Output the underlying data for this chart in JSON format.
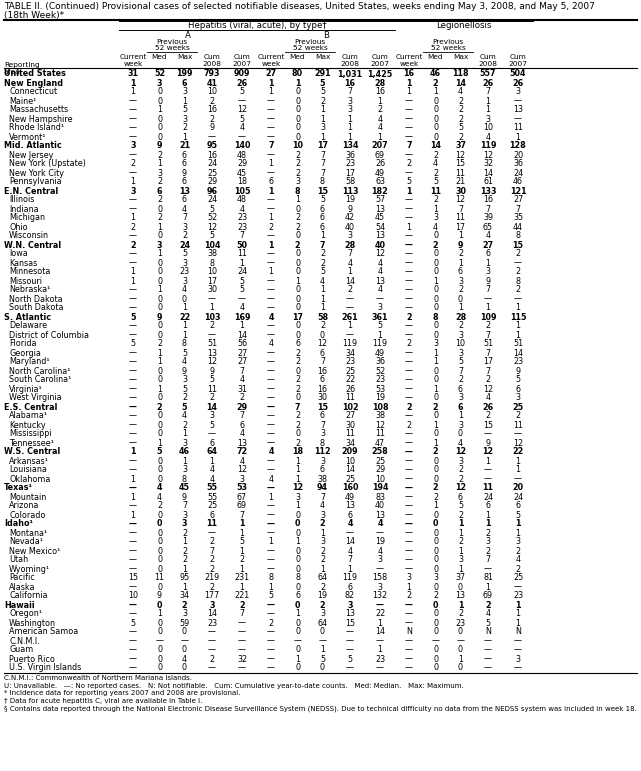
{
  "title1": "TABLE II. (Continued) Provisional cases of selected notifiable diseases, United States, weeks ending May 3, 2008, and May 5, 2007",
  "title2": "(18th Week)*",
  "hep_label": "Hepatitis (viral, acute), by type†",
  "bold_rows": [
    0,
    1,
    8,
    13,
    19,
    27,
    37,
    42,
    46,
    50,
    59
  ],
  "rows": [
    [
      "United States",
      "31",
      "52",
      "199",
      "793",
      "909",
      "27",
      "80",
      "291",
      "1,031",
      "1,425",
      "16",
      "46",
      "118",
      "557",
      "504"
    ],
    [
      "New England",
      "1",
      "3",
      "6",
      "41",
      "26",
      "1",
      "1",
      "5",
      "16",
      "28",
      "1",
      "2",
      "14",
      "26",
      "26"
    ],
    [
      "Connecticut",
      "1",
      "0",
      "3",
      "10",
      "5",
      "1",
      "0",
      "5",
      "7",
      "16",
      "1",
      "1",
      "4",
      "7",
      "3"
    ],
    [
      "Maine¹",
      "—",
      "0",
      "1",
      "2",
      "—",
      "—",
      "0",
      "2",
      "3",
      "1",
      "—",
      "0",
      "2",
      "1",
      "—"
    ],
    [
      "Massachusetts",
      "—",
      "1",
      "5",
      "16",
      "12",
      "—",
      "0",
      "1",
      "3",
      "2",
      "—",
      "0",
      "2",
      "1",
      "13"
    ],
    [
      "New Hampshire",
      "—",
      "0",
      "3",
      "2",
      "5",
      "—",
      "0",
      "1",
      "1",
      "4",
      "—",
      "0",
      "2",
      "3",
      "—"
    ],
    [
      "Rhode Island¹",
      "—",
      "0",
      "2",
      "9",
      "4",
      "—",
      "0",
      "3",
      "1",
      "4",
      "—",
      "0",
      "5",
      "10",
      "11"
    ],
    [
      "Vermont¹",
      "—",
      "0",
      "1",
      "—",
      "—",
      "—",
      "0",
      "1",
      "1",
      "1",
      "—",
      "0",
      "2",
      "4",
      "1"
    ],
    [
      "Mid. Atlantic",
      "3",
      "9",
      "21",
      "95",
      "140",
      "7",
      "10",
      "17",
      "134",
      "207",
      "7",
      "14",
      "37",
      "119",
      "128"
    ],
    [
      "New Jersey",
      "—",
      "2",
      "6",
      "16",
      "48",
      "—",
      "2",
      "7",
      "36",
      "69",
      "—",
      "2",
      "12",
      "12",
      "20"
    ],
    [
      "New York (Upstate)",
      "2",
      "1",
      "6",
      "24",
      "29",
      "1",
      "2",
      "7",
      "23",
      "26",
      "2",
      "4",
      "15",
      "32",
      "36"
    ],
    [
      "New York City",
      "—",
      "3",
      "9",
      "25",
      "45",
      "—",
      "2",
      "7",
      "17",
      "49",
      "—",
      "2",
      "11",
      "14",
      "24"
    ],
    [
      "Pennsylvania",
      "1",
      "2",
      "6",
      "29",
      "18",
      "6",
      "3",
      "8",
      "58",
      "63",
      "5",
      "5",
      "21",
      "61",
      "46"
    ],
    [
      "E.N. Central",
      "3",
      "6",
      "13",
      "96",
      "105",
      "1",
      "8",
      "15",
      "113",
      "182",
      "1",
      "11",
      "30",
      "133",
      "121"
    ],
    [
      "Illinois",
      "—",
      "2",
      "6",
      "24",
      "48",
      "—",
      "1",
      "5",
      "19",
      "57",
      "—",
      "2",
      "12",
      "16",
      "27"
    ],
    [
      "Indiana",
      "—",
      "0",
      "4",
      "5",
      "4",
      "—",
      "0",
      "6",
      "9",
      "13",
      "—",
      "1",
      "7",
      "7",
      "7"
    ],
    [
      "Michigan",
      "1",
      "2",
      "7",
      "52",
      "23",
      "1",
      "2",
      "6",
      "42",
      "45",
      "—",
      "3",
      "11",
      "39",
      "35"
    ],
    [
      "Ohio",
      "2",
      "1",
      "3",
      "12",
      "23",
      "2",
      "2",
      "6",
      "40",
      "54",
      "1",
      "4",
      "17",
      "65",
      "44"
    ],
    [
      "Wisconsin",
      "—",
      "0",
      "2",
      "5",
      "7",
      "—",
      "0",
      "1",
      "3",
      "13",
      "—",
      "0",
      "1",
      "4",
      "8"
    ],
    [
      "W.N. Central",
      "2",
      "3",
      "24",
      "104",
      "50",
      "1",
      "2",
      "7",
      "28",
      "40",
      "—",
      "2",
      "9",
      "27",
      "15"
    ],
    [
      "Iowa",
      "—",
      "1",
      "5",
      "38",
      "11",
      "—",
      "0",
      "2",
      "7",
      "12",
      "—",
      "0",
      "2",
      "6",
      "2"
    ],
    [
      "Kansas",
      "—",
      "0",
      "3",
      "8",
      "1",
      "—",
      "0",
      "2",
      "4",
      "4",
      "—",
      "0",
      "1",
      "1",
      "—"
    ],
    [
      "Minnesota",
      "1",
      "0",
      "23",
      "10",
      "24",
      "1",
      "0",
      "5",
      "1",
      "4",
      "—",
      "0",
      "6",
      "3",
      "2"
    ],
    [
      "Missouri",
      "1",
      "0",
      "3",
      "17",
      "5",
      "—",
      "1",
      "4",
      "14",
      "13",
      "—",
      "1",
      "3",
      "9",
      "8"
    ],
    [
      "Nebraska¹",
      "—",
      "1",
      "4",
      "30",
      "5",
      "—",
      "0",
      "1",
      "2",
      "4",
      "—",
      "0",
      "2",
      "7",
      "2"
    ],
    [
      "North Dakota",
      "—",
      "0",
      "0",
      "—",
      "—",
      "—",
      "0",
      "1",
      "—",
      "—",
      "—",
      "0",
      "0",
      "—",
      "—"
    ],
    [
      "South Dakota",
      "—",
      "0",
      "1",
      "1",
      "4",
      "—",
      "0",
      "1",
      "—",
      "3",
      "—",
      "0",
      "1",
      "1",
      "1"
    ],
    [
      "S. Atlantic",
      "5",
      "9",
      "22",
      "103",
      "169",
      "4",
      "17",
      "58",
      "261",
      "361",
      "2",
      "8",
      "28",
      "109",
      "115"
    ],
    [
      "Delaware",
      "—",
      "0",
      "1",
      "2",
      "1",
      "—",
      "0",
      "2",
      "1",
      "5",
      "—",
      "0",
      "2",
      "2",
      "1"
    ],
    [
      "District of Columbia",
      "—",
      "0",
      "1",
      "—",
      "14",
      "—",
      "0",
      "0",
      "—",
      "1",
      "—",
      "0",
      "3",
      "7",
      "1"
    ],
    [
      "Florida",
      "5",
      "2",
      "8",
      "51",
      "56",
      "4",
      "6",
      "12",
      "119",
      "119",
      "2",
      "3",
      "10",
      "51",
      "51"
    ],
    [
      "Georgia",
      "—",
      "1",
      "5",
      "13",
      "27",
      "—",
      "2",
      "6",
      "34",
      "49",
      "—",
      "1",
      "3",
      "7",
      "14"
    ],
    [
      "Maryland¹",
      "—",
      "1",
      "4",
      "12",
      "27",
      "—",
      "2",
      "7",
      "23",
      "36",
      "—",
      "1",
      "5",
      "17",
      "23"
    ],
    [
      "North Carolina¹",
      "—",
      "0",
      "9",
      "9",
      "7",
      "—",
      "0",
      "16",
      "25",
      "52",
      "—",
      "0",
      "7",
      "7",
      "9"
    ],
    [
      "South Carolina¹",
      "—",
      "0",
      "3",
      "5",
      "4",
      "—",
      "2",
      "6",
      "22",
      "23",
      "—",
      "0",
      "2",
      "2",
      "5"
    ],
    [
      "Virginia¹",
      "—",
      "1",
      "5",
      "11",
      "31",
      "—",
      "2",
      "16",
      "26",
      "53",
      "—",
      "1",
      "6",
      "12",
      "6"
    ],
    [
      "West Virginia",
      "—",
      "0",
      "2",
      "2",
      "2",
      "—",
      "0",
      "30",
      "11",
      "19",
      "—",
      "0",
      "3",
      "4",
      "3"
    ],
    [
      "E.S. Central",
      "—",
      "2",
      "5",
      "14",
      "29",
      "—",
      "7",
      "15",
      "102",
      "108",
      "2",
      "2",
      "6",
      "26",
      "25"
    ],
    [
      "Alabama¹",
      "—",
      "0",
      "4",
      "3",
      "7",
      "—",
      "2",
      "6",
      "27",
      "38",
      "—",
      "0",
      "1",
      "2",
      "2"
    ],
    [
      "Kentucky",
      "—",
      "0",
      "2",
      "5",
      "6",
      "—",
      "2",
      "7",
      "30",
      "12",
      "2",
      "1",
      "3",
      "15",
      "11"
    ],
    [
      "Mississippi",
      "—",
      "0",
      "1",
      "—",
      "4",
      "—",
      "0",
      "3",
      "11",
      "11",
      "—",
      "0",
      "0",
      "—",
      "—"
    ],
    [
      "Tennessee¹",
      "—",
      "1",
      "3",
      "6",
      "13",
      "—",
      "2",
      "8",
      "34",
      "47",
      "—",
      "1",
      "4",
      "9",
      "12"
    ],
    [
      "W.S. Central",
      "1",
      "5",
      "46",
      "64",
      "72",
      "4",
      "18",
      "112",
      "209",
      "258",
      "—",
      "2",
      "12",
      "12",
      "22"
    ],
    [
      "Arkansas¹",
      "—",
      "0",
      "1",
      "1",
      "4",
      "—",
      "1",
      "3",
      "10",
      "25",
      "—",
      "0",
      "3",
      "1",
      "1"
    ],
    [
      "Louisiana",
      "—",
      "0",
      "3",
      "4",
      "12",
      "—",
      "1",
      "6",
      "14",
      "29",
      "—",
      "0",
      "2",
      "—",
      "1"
    ],
    [
      "Oklahoma",
      "1",
      "0",
      "8",
      "4",
      "3",
      "4",
      "1",
      "38",
      "25",
      "10",
      "—",
      "0",
      "2",
      "—",
      "—"
    ],
    [
      "Texas¹",
      "—",
      "4",
      "45",
      "55",
      "53",
      "—",
      "12",
      "94",
      "160",
      "194",
      "—",
      "2",
      "12",
      "11",
      "20"
    ],
    [
      "Mountain",
      "1",
      "4",
      "9",
      "55",
      "67",
      "1",
      "3",
      "7",
      "49",
      "83",
      "—",
      "2",
      "6",
      "24",
      "24"
    ],
    [
      "Arizona",
      "—",
      "2",
      "7",
      "25",
      "69",
      "—",
      "1",
      "4",
      "13",
      "40",
      "—",
      "1",
      "5",
      "6",
      "6"
    ],
    [
      "Colorado",
      "1",
      "0",
      "3",
      "6",
      "7",
      "—",
      "0",
      "3",
      "6",
      "13",
      "—",
      "0",
      "2",
      "1",
      "5"
    ],
    [
      "Idaho¹",
      "—",
      "0",
      "3",
      "11",
      "1",
      "—",
      "0",
      "2",
      "4",
      "4",
      "—",
      "0",
      "1",
      "1",
      "1"
    ],
    [
      "Montana¹",
      "—",
      "0",
      "2",
      "—",
      "1",
      "—",
      "0",
      "1",
      "—",
      "—",
      "—",
      "0",
      "1",
      "2",
      "1"
    ],
    [
      "Nevada¹",
      "—",
      "0",
      "1",
      "2",
      "5",
      "1",
      "1",
      "3",
      "14",
      "19",
      "—",
      "0",
      "2",
      "3",
      "3"
    ],
    [
      "New Mexico¹",
      "—",
      "0",
      "2",
      "7",
      "1",
      "—",
      "0",
      "2",
      "4",
      "4",
      "—",
      "0",
      "1",
      "2",
      "2"
    ],
    [
      "Utah",
      "—",
      "0",
      "2",
      "2",
      "2",
      "—",
      "0",
      "2",
      "7",
      "3",
      "—",
      "0",
      "3",
      "7",
      "4"
    ],
    [
      "Wyoming¹",
      "—",
      "0",
      "1",
      "2",
      "1",
      "—",
      "0",
      "1",
      "1",
      "—",
      "—",
      "0",
      "1",
      "—",
      "2"
    ],
    [
      "Pacific",
      "15",
      "11",
      "95",
      "219",
      "231",
      "8",
      "8",
      "64",
      "119",
      "158",
      "3",
      "3",
      "37",
      "81",
      "25"
    ],
    [
      "Alaska",
      "—",
      "0",
      "1",
      "2",
      "1",
      "1",
      "0",
      "2",
      "6",
      "3",
      "1",
      "0",
      "0",
      "1",
      "—"
    ],
    [
      "California",
      "10",
      "9",
      "34",
      "177",
      "221",
      "5",
      "6",
      "19",
      "82",
      "132",
      "2",
      "2",
      "13",
      "69",
      "23"
    ],
    [
      "Hawaii",
      "—",
      "0",
      "2",
      "3",
      "2",
      "—",
      "0",
      "2",
      "3",
      "—",
      "—",
      "0",
      "1",
      "2",
      "1"
    ],
    [
      "Oregon¹",
      "—",
      "1",
      "3",
      "14",
      "7",
      "—",
      "1",
      "3",
      "13",
      "22",
      "—",
      "0",
      "2",
      "4",
      "1"
    ],
    [
      "Washington",
      "5",
      "0",
      "59",
      "23",
      "—",
      "2",
      "0",
      "64",
      "15",
      "1",
      "—",
      "0",
      "23",
      "5",
      "1"
    ],
    [
      "American Samoa",
      "—",
      "0",
      "0",
      "—",
      "—",
      "—",
      "0",
      "0",
      "—",
      "14",
      "N",
      "0",
      "0",
      "N",
      "N"
    ],
    [
      "C.N.M.I.",
      "—",
      "—",
      "—",
      "—",
      "—",
      "—",
      "—",
      "—",
      "—",
      "—",
      "—",
      "—",
      "—",
      "—",
      "—"
    ],
    [
      "Guam",
      "—",
      "0",
      "0",
      "—",
      "—",
      "—",
      "0",
      "1",
      "—",
      "1",
      "—",
      "0",
      "0",
      "—",
      "—"
    ],
    [
      "Puerto Rico",
      "—",
      "0",
      "4",
      "2",
      "32",
      "—",
      "1",
      "5",
      "5",
      "23",
      "—",
      "0",
      "1",
      "—",
      "3"
    ],
    [
      "U.S. Virgin Islands",
      "—",
      "0",
      "0",
      "—",
      "—",
      "—",
      "0",
      "0",
      "—",
      "—",
      "—",
      "0",
      "0",
      "—",
      "—"
    ]
  ],
  "footnotes": [
    "C.N.M.I.: Commonwealth of Northern Mariana Islands.",
    "U: Unavailable.   —: No reported cases.   N: Not notifiable.   Cum: Cumulative year-to-date counts.   Med: Median.   Max: Maximum.",
    "* Incidence data for reporting years 2007 and 2008 are provisional.",
    "† Data for acute hepatitis C, viral are available in Table I.",
    "§ Contains data reported through the National Electronic Disease Surveillance System (NEDSS). Due to technical difficulty no data from the NEDSS system was included in week 18."
  ]
}
